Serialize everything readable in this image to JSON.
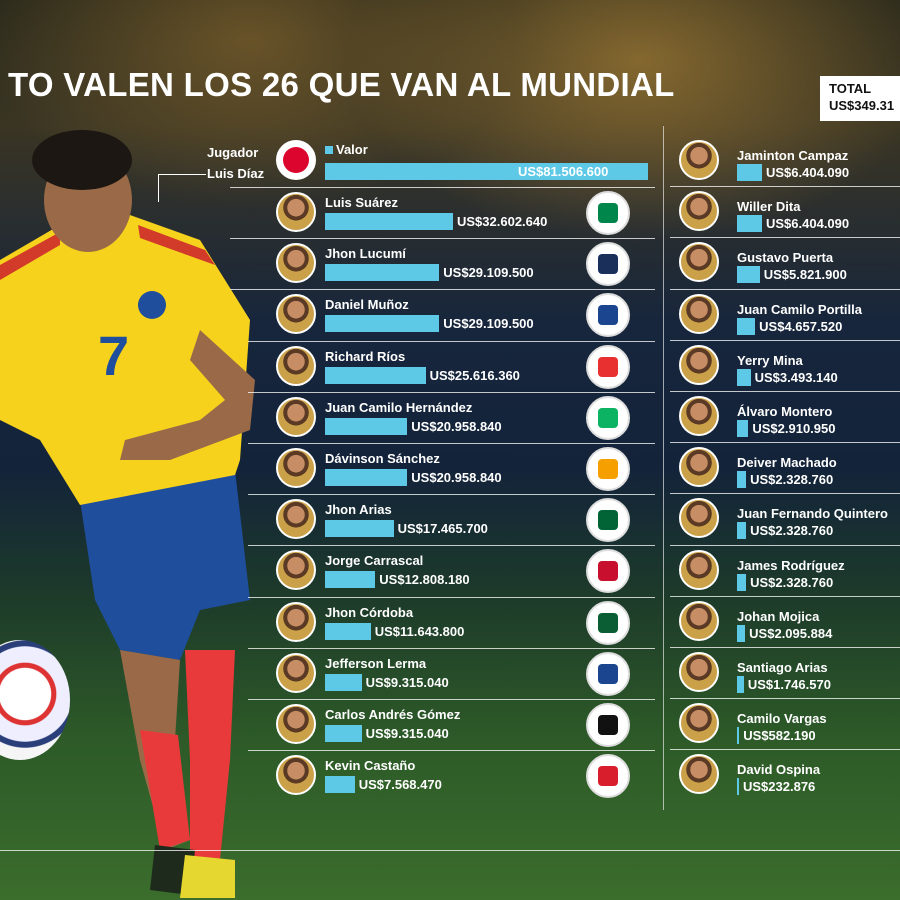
{
  "title": "TO VALEN LOS 26 QUE VAN AL MUNDIAL",
  "total": {
    "label": "TOTAL",
    "value": "US$349.31"
  },
  "header": {
    "player_label": "Jugador",
    "value_label": "Valor"
  },
  "colors": {
    "bar": "#5ec9e6",
    "text": "#ffffff"
  },
  "chart_data": {
    "type": "bar",
    "orientation": "horizontal",
    "series": [
      {
        "values": [
          81506600,
          32602640,
          29109500,
          29109500,
          25616360,
          20958840,
          20958840,
          17465700,
          12808180,
          11643800,
          9315040,
          9315040,
          7568470,
          6404090,
          6404090,
          5821900,
          4657520,
          3493140,
          2910950,
          2328760,
          2328760,
          2328760,
          2095884,
          1746570,
          582190,
          232876
        ]
      }
    ],
    "categories": [
      "Luis Díaz",
      "Luis Suárez",
      "Jhon Lucumí",
      "Daniel Muñoz",
      "Richard Ríos",
      "Juan Camilo Hernández",
      "Dávinson Sánchez",
      "Jhon Arias",
      "Jorge Carrascal",
      "Jhon Córdoba",
      "Jefferson Lerma",
      "Carlos Andrés Gómez",
      "Kevin Castaño",
      "Jaminton Campaz",
      "Willer Dita",
      "Gustavo Puerta",
      "Juan Camilo Portilla",
      "Yerry Mina",
      "Álvaro Montero",
      "Deiver Machado",
      "Juan Fernando Quintero",
      "James Rodríguez",
      "Johan Mojica",
      "Santiago Arias",
      "Camilo Vargas",
      "David Ospina"
    ],
    "value_labels": [
      "US$81.506.600",
      "US$32.602.640",
      "US$29.109.500",
      "US$29.109.500",
      "US$25.616.360",
      "US$20.958.840",
      "US$20.958.840",
      "US$17.465.700",
      "US$12.808.180",
      "US$11.643.800",
      "US$9.315.040",
      "US$9.315.040",
      "US$7.568.470",
      "US$6.404.090",
      "US$6.404.090",
      "US$5.821.900",
      "US$4.657.520",
      "US$3.493.140",
      "US$2.910.950",
      "US$2.328.760",
      "US$2.328.760",
      "US$2.328.760",
      "US$2.095.884",
      "US$1.746.570",
      "US$582.190",
      "US$232.876"
    ]
  },
  "left_column": [
    {
      "name": "Luis Díaz",
      "crest": "bayern-crest",
      "crest_color": "#dc052d",
      "value": 81506600,
      "label": "US$81.506.600"
    },
    {
      "name": "Luis Suárez",
      "crest": "sporting-crest",
      "crest_color": "#00854a",
      "value": 32602640,
      "label": "US$32.602.640"
    },
    {
      "name": "Jhon Lucumí",
      "crest": "bologna-crest",
      "crest_color": "#1a2f5a",
      "value": 29109500,
      "label": "US$29.109.500"
    },
    {
      "name": "Daniel Muñoz",
      "crest": "crystal-palace-crest",
      "crest_color": "#1b458f",
      "value": 29109500,
      "label": "US$29.109.500"
    },
    {
      "name": "Richard Ríos",
      "crest": "benfica-crest",
      "crest_color": "#e83030",
      "value": 25616360,
      "label": "US$25.616.360"
    },
    {
      "name": "Juan Camilo Hernández",
      "crest": "betis-crest",
      "crest_color": "#0bb363",
      "value": 20958840,
      "label": "US$20.958.840"
    },
    {
      "name": "Dávinson Sánchez",
      "crest": "galatasaray-crest",
      "crest_color": "#f5a000",
      "value": 20958840,
      "label": "US$20.958.840"
    },
    {
      "name": "Jhon Arias",
      "crest": "palmeiras-crest",
      "crest_color": "#006437",
      "value": 17465700,
      "label": "US$17.465.700"
    },
    {
      "name": "Jorge Carrascal",
      "crest": "flamengo-crest",
      "crest_color": "#c8102e",
      "value": 12808180,
      "label": "US$12.808.180"
    },
    {
      "name": "Jhon Córdoba",
      "crest": "krasnodar-crest",
      "crest_color": "#0b5e34",
      "value": 11643800,
      "label": "US$11.643.800"
    },
    {
      "name": "Jefferson Lerma",
      "crest": "crystal-palace-crest",
      "crest_color": "#1b458f",
      "value": 9315040,
      "label": "US$9.315.040"
    },
    {
      "name": "Carlos Andrés Gómez",
      "crest": "vasco-crest",
      "crest_color": "#111111",
      "value": 9315040,
      "label": "US$9.315.040"
    },
    {
      "name": "Kevin Castaño",
      "crest": "river-plate-crest",
      "crest_color": "#d81e2c",
      "value": 7568470,
      "label": "US$7.568.470"
    }
  ],
  "right_column": [
    {
      "name": "Jaminton Campaz",
      "value": 6404090,
      "label": "US$6.404.090"
    },
    {
      "name": "Willer Dita",
      "value": 6404090,
      "label": "US$6.404.090"
    },
    {
      "name": "Gustavo Puerta",
      "value": 5821900,
      "label": "US$5.821.900"
    },
    {
      "name": "Juan Camilo Portilla",
      "value": 4657520,
      "label": "US$4.657.520"
    },
    {
      "name": "Yerry Mina",
      "value": 3493140,
      "label": "US$3.493.140"
    },
    {
      "name": "Álvaro Montero",
      "value": 2910950,
      "label": "US$2.910.950"
    },
    {
      "name": "Deiver Machado",
      "value": 2328760,
      "label": "US$2.328.760"
    },
    {
      "name": "Juan Fernando Quintero",
      "value": 2328760,
      "label": "US$2.328.760"
    },
    {
      "name": "James Rodríguez",
      "value": 2328760,
      "label": "US$2.328.760"
    },
    {
      "name": "Johan Mojica",
      "value": 2095884,
      "label": "US$2.095.884"
    },
    {
      "name": "Santiago Arias",
      "value": 1746570,
      "label": "US$1.746.570"
    },
    {
      "name": "Camilo Vargas",
      "value": 582190,
      "label": "US$582.190"
    },
    {
      "name": "David Ospina",
      "value": 232876,
      "label": "US$232.876"
    }
  ]
}
